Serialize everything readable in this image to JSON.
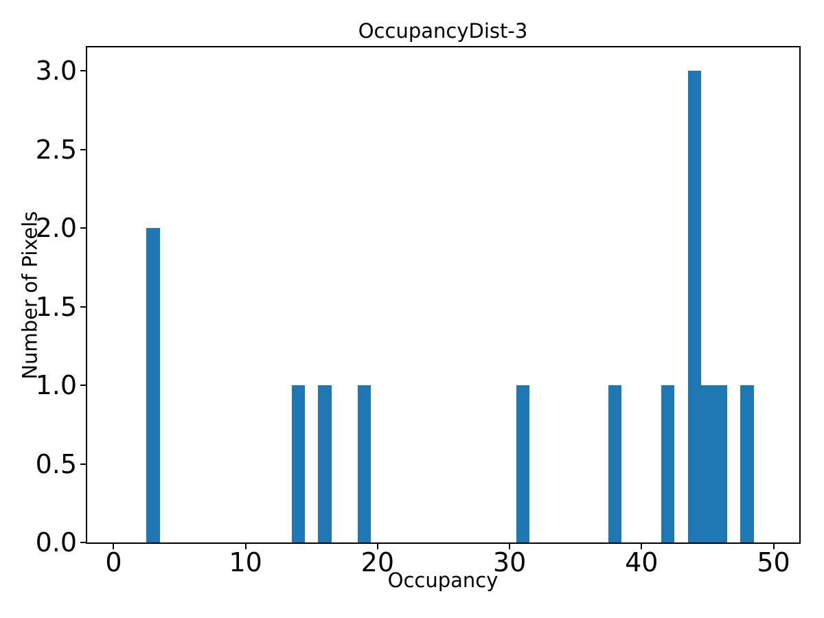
{
  "figure": {
    "background": "#ffffff",
    "text_color": "#000000"
  },
  "chart_data": {
    "type": "bar",
    "title": "OccupancyDist-3",
    "xlabel": "Occupancy",
    "ylabel": "Number of Pixels",
    "bar_color": "#1f77b4",
    "bar_width": 1,
    "bars": [
      {
        "x": 3,
        "count": 2
      },
      {
        "x": 14,
        "count": 1
      },
      {
        "x": 16,
        "count": 1
      },
      {
        "x": 19,
        "count": 1
      },
      {
        "x": 31,
        "count": 1
      },
      {
        "x": 38,
        "count": 1
      },
      {
        "x": 42,
        "count": 1
      },
      {
        "x": 44,
        "count": 3
      },
      {
        "x": 45,
        "count": 1
      },
      {
        "x": 46,
        "count": 1
      },
      {
        "x": 48,
        "count": 1
      }
    ],
    "xlim": [
      -2.0,
      51.95
    ],
    "ylim": [
      0,
      3.15
    ],
    "xticks": [
      {
        "value": 0,
        "label": "0"
      },
      {
        "value": 10,
        "label": "10"
      },
      {
        "value": 20,
        "label": "20"
      },
      {
        "value": 30,
        "label": "30"
      },
      {
        "value": 40,
        "label": "40"
      },
      {
        "value": 50,
        "label": "50"
      }
    ],
    "yticks": [
      {
        "value": 0.0,
        "label": "0.0"
      },
      {
        "value": 0.5,
        "label": "0.5"
      },
      {
        "value": 1.0,
        "label": "1.0"
      },
      {
        "value": 1.5,
        "label": "1.5"
      },
      {
        "value": 2.0,
        "label": "2.0"
      },
      {
        "value": 2.5,
        "label": "2.5"
      },
      {
        "value": 3.0,
        "label": "3.0"
      }
    ],
    "grid": false,
    "legend": null
  }
}
